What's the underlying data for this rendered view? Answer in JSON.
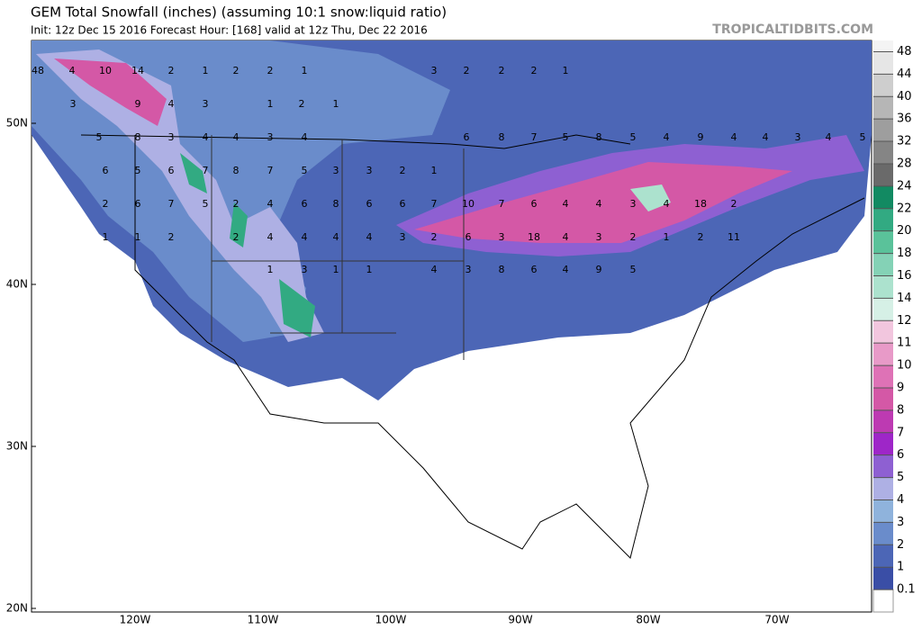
{
  "header": {
    "title": "GEM Total Snowfall (inches) (assuming 10:1 snow:liquid ratio)",
    "subtitle": "Init: 12z Dec 15 2016   Forecast Hour: [168]   valid at 12z Thu, Dec 22 2016",
    "brand": "TROPICALTIDBITS.COM"
  },
  "map": {
    "lat_labels": [
      "50N",
      "40N",
      "30N",
      "20N"
    ],
    "lon_labels": [
      "120W",
      "110W",
      "100W",
      "90W",
      "80W",
      "70W"
    ],
    "labels": [
      "48",
      "4",
      "10",
      "14",
      "2",
      "1",
      "2",
      "2",
      "1",
      "3",
      "2",
      "2",
      "2",
      "1",
      "3",
      "9",
      "4",
      "3",
      "1",
      "2",
      "1",
      "5",
      "8",
      "3",
      "4",
      "4",
      "3",
      "4",
      "6",
      "8",
      "7",
      "5",
      "8",
      "5",
      "4",
      "9",
      "4",
      "4",
      "3",
      "4",
      "5",
      "6",
      "5",
      "6",
      "7",
      "8",
      "7",
      "5",
      "3",
      "3",
      "2",
      "1",
      "2",
      "6",
      "7",
      "5",
      "2",
      "4",
      "6",
      "8",
      "6",
      "6",
      "7",
      "10",
      "7",
      "6",
      "4",
      "4",
      "3",
      "4",
      "18",
      "2",
      "1",
      "1",
      "2",
      "2",
      "4",
      "4",
      "4",
      "4",
      "3",
      "2",
      "6",
      "3",
      "18",
      "4",
      "3",
      "2",
      "1",
      "2",
      "11",
      "1",
      "3",
      "1",
      "1",
      "4",
      "3",
      "8",
      "6",
      "4",
      "9",
      "5"
    ]
  },
  "colorbar": {
    "levels": [
      "0.1",
      "1",
      "2",
      "3",
      "4",
      "5",
      "6",
      "7",
      "8",
      "9",
      "10",
      "11",
      "12",
      "14",
      "16",
      "18",
      "20",
      "22",
      "24",
      "28",
      "32",
      "36",
      "40",
      "44",
      "48"
    ],
    "colors": [
      "#3a4ea6",
      "#4c66b6",
      "#6a8ccb",
      "#8fb3dc",
      "#aeb0e4",
      "#8e60d2",
      "#9e26c8",
      "#bd3ab2",
      "#d458a6",
      "#de72b6",
      "#e89ac8",
      "#f2c6de",
      "#d6f0e6",
      "#ace2ce",
      "#84d2b6",
      "#5ac29a",
      "#32aa82",
      "#128a62",
      "#6a6a6a",
      "#858585",
      "#9e9e9e",
      "#b6b6b6",
      "#cecece",
      "#e6e6e6"
    ]
  }
}
